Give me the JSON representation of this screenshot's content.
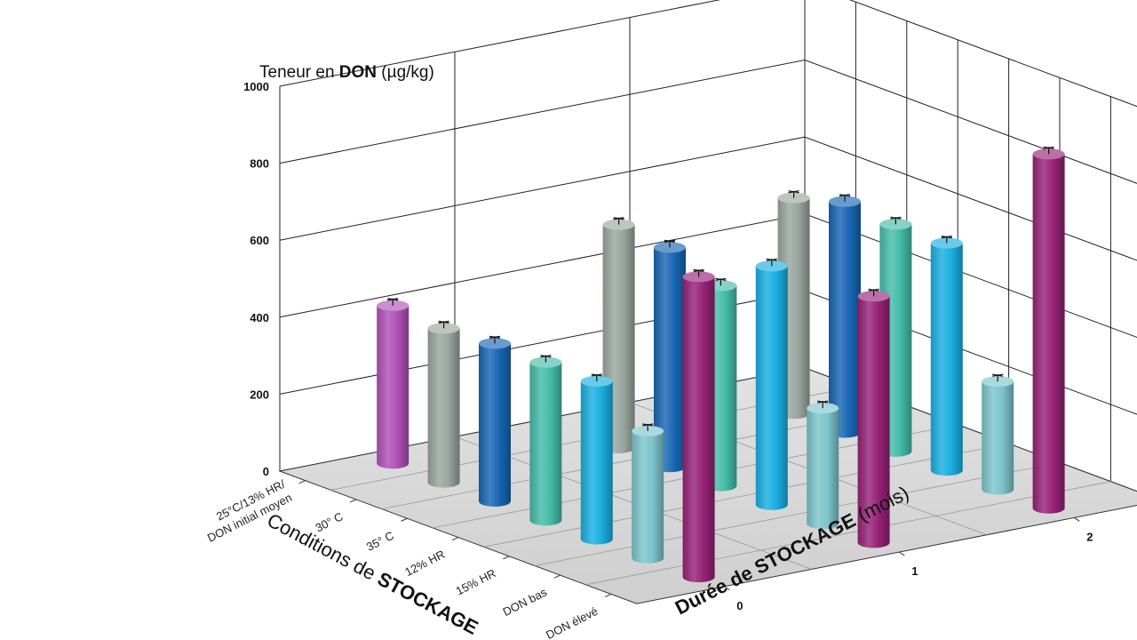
{
  "chart_data": {
    "type": "bar",
    "title": "",
    "zlabel": {
      "prefix": "Teneur en ",
      "bold": "DON",
      "suffix": " (µg/kg)"
    },
    "xlabel": {
      "prefix": "Conditions de ",
      "bold": "STOCKAGE",
      "suffix": ""
    },
    "ylabel": {
      "prefix": "Durée de ",
      "bold": "STOCKAGE",
      "suffix": " (mois)"
    },
    "zlim": [
      0,
      1000
    ],
    "zticks": [
      "0",
      "200",
      "400",
      "600",
      "800",
      "1000"
    ],
    "categories": [
      "25°C/13% HR/\nDON initial moyen",
      "30° C",
      "35° C",
      "12% HR",
      "15% HR",
      "DON bas",
      "DON élevé"
    ],
    "months": [
      "0",
      "1",
      "2"
    ],
    "colors": [
      "#b050b8",
      "#98a69e",
      "#1766b3",
      "#44bca8",
      "#1aaee0",
      "#7cc4cc",
      "#962276"
    ],
    "series": [
      {
        "name": "0",
        "values": [
          410,
          400,
          410,
          410,
          410,
          330,
          780
        ]
      },
      {
        "name": "1",
        "values": [
          null,
          580,
          570,
          520,
          620,
          300,
          640
        ]
      },
      {
        "name": "2",
        "values": [
          null,
          560,
          600,
          590,
          590,
          280,
          920
        ]
      }
    ]
  }
}
